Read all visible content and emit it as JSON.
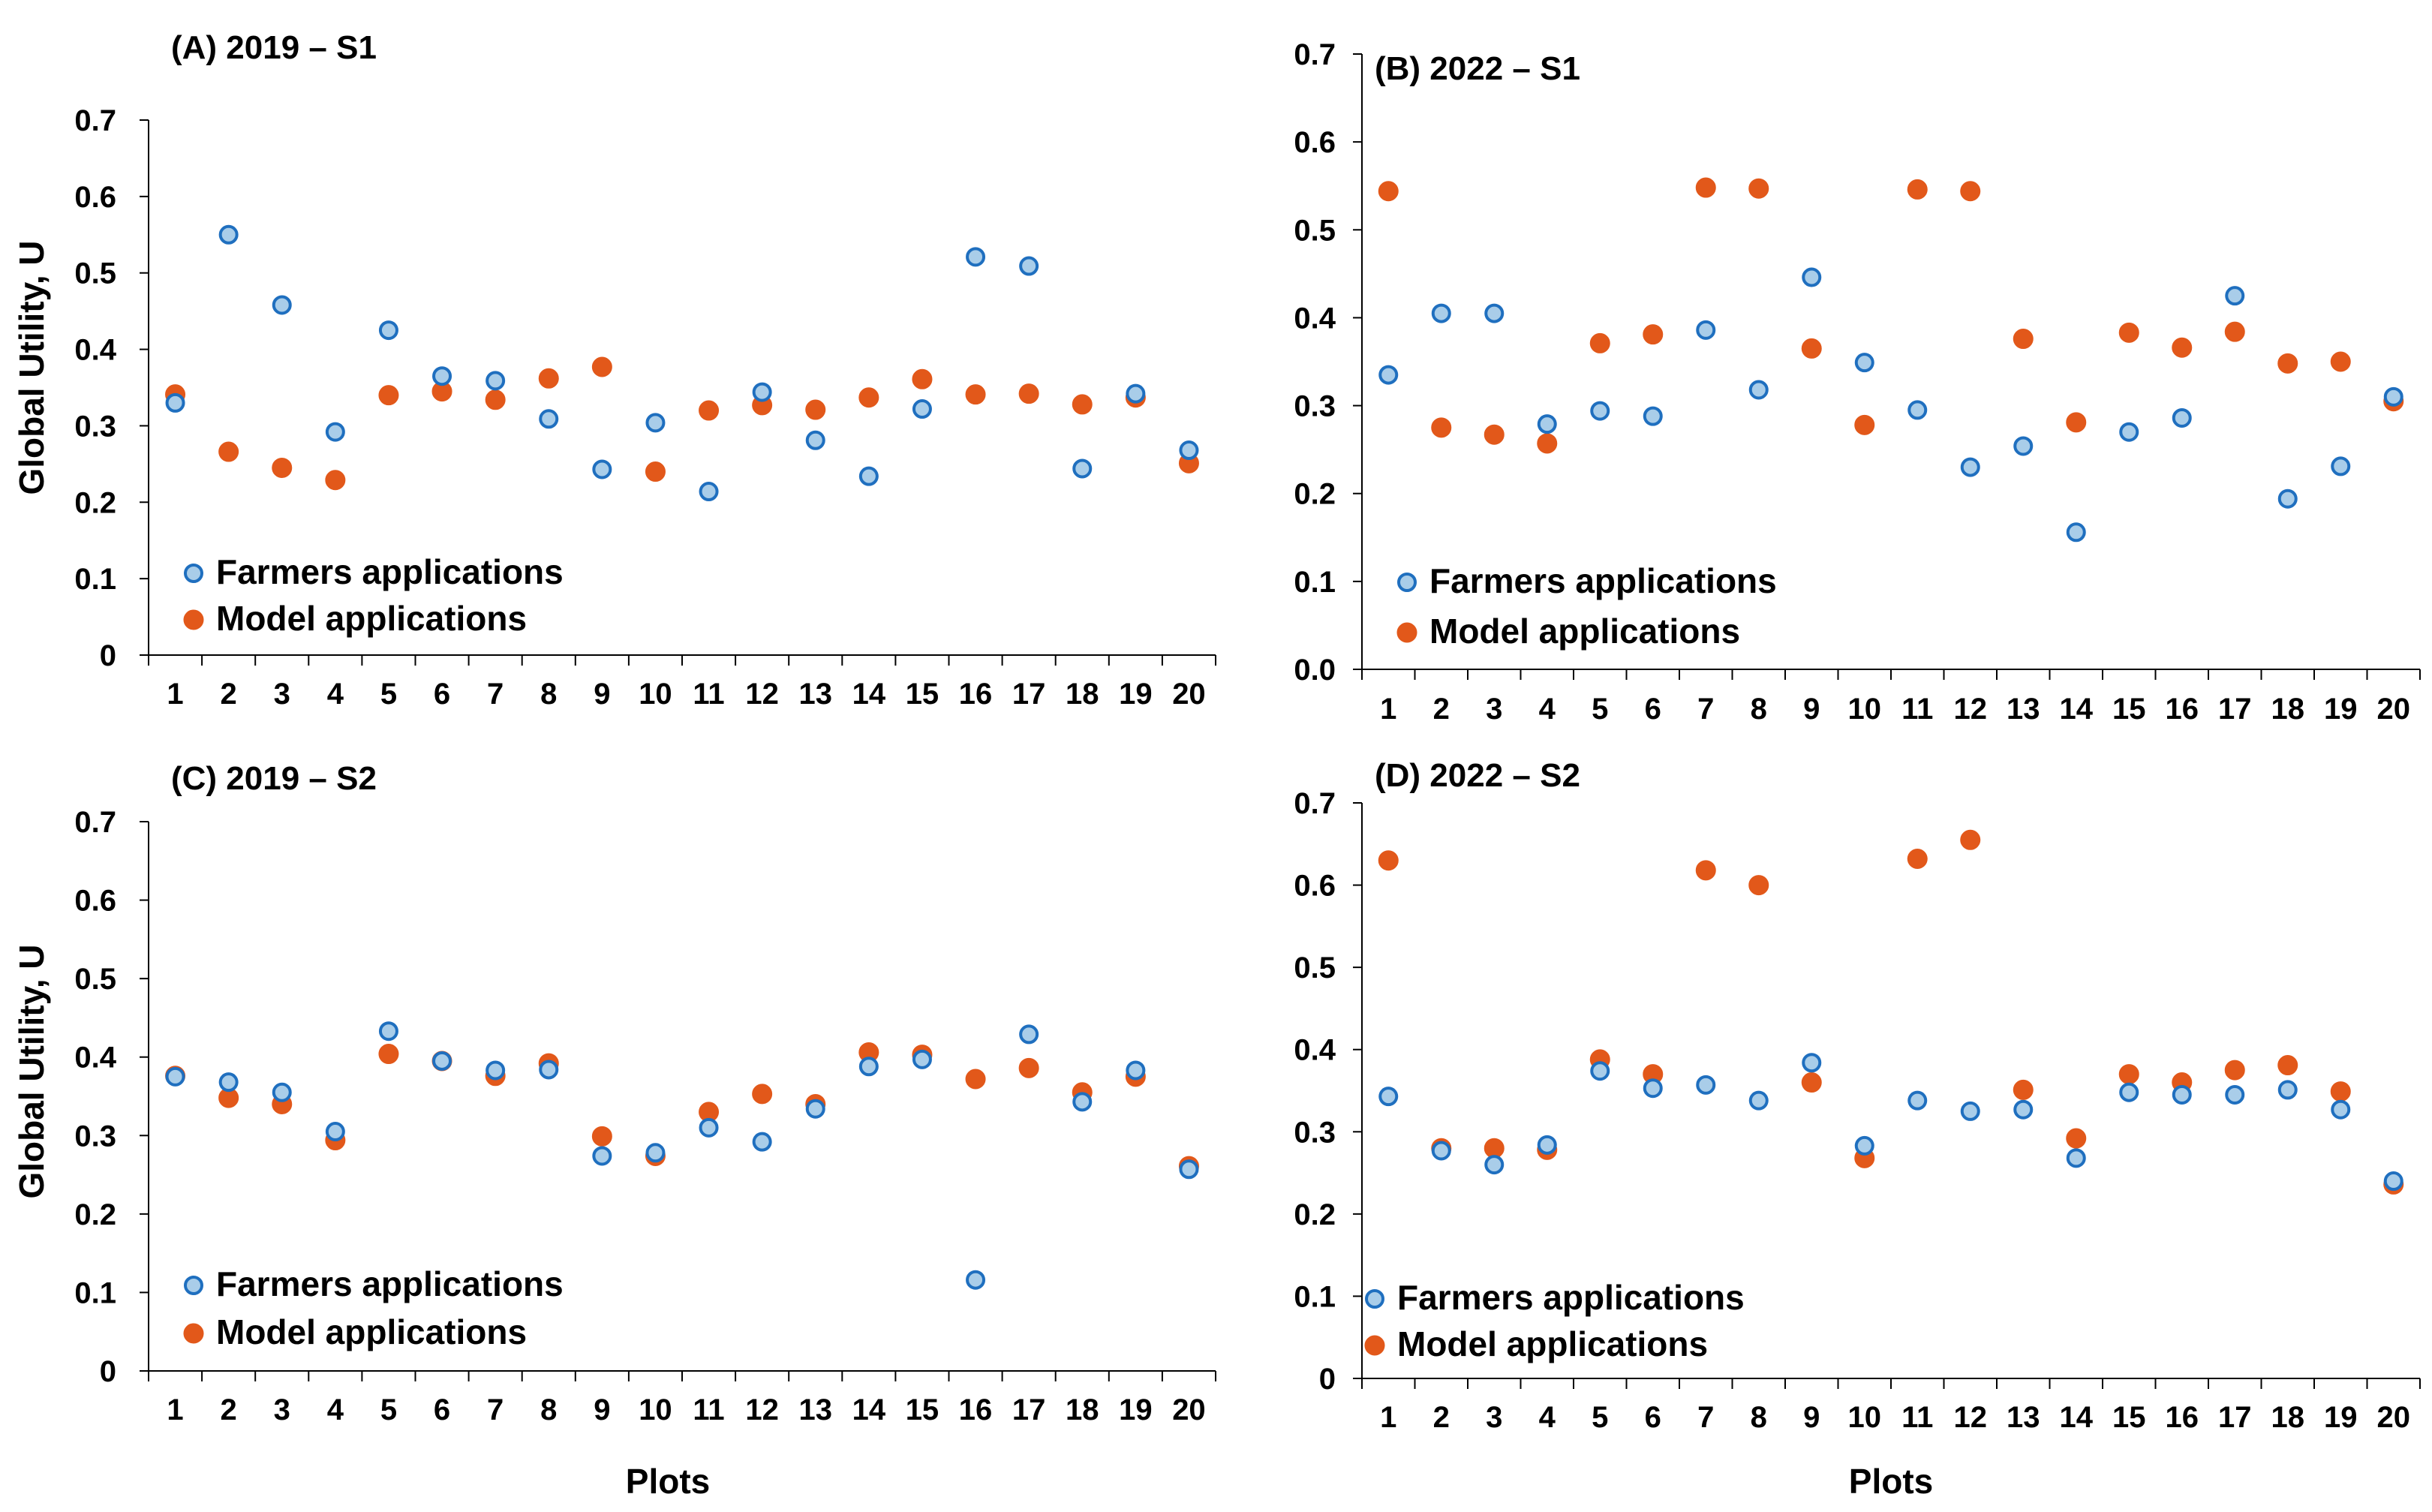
{
  "figure": {
    "ylabel": "Global Utility, U",
    "xlabel": "Plots"
  },
  "colors": {
    "farmers_fill": "#a9cde9",
    "farmers_stroke": "#1f6fbf",
    "model_fill": "#e2581a",
    "axis": "#000000"
  },
  "chart_data": [
    {
      "type": "scatter",
      "title": "(A) 2019 – S1",
      "xlabel": "",
      "ylabel": "Global Utility, U",
      "ylim": [
        0,
        0.7
      ],
      "ytick_labels": [
        "0",
        "0.1",
        "0.2",
        "0.3",
        "0.4",
        "0.5",
        "0.6",
        "0.7"
      ],
      "categories": [
        "1",
        "2",
        "3",
        "4",
        "5",
        "6",
        "7",
        "8",
        "9",
        "10",
        "11",
        "12",
        "13",
        "14",
        "15",
        "16",
        "17",
        "18",
        "19",
        "20"
      ],
      "legend": [
        "Farmers applications",
        "Model applications"
      ],
      "series": [
        {
          "name": "Farmers applications",
          "values": [
            0.33,
            0.55,
            0.458,
            0.292,
            0.425,
            0.365,
            0.359,
            0.309,
            0.243,
            0.304,
            0.214,
            0.344,
            0.281,
            0.234,
            0.322,
            0.521,
            0.509,
            0.244,
            0.342,
            0.268
          ]
        },
        {
          "name": "Model applications",
          "values": [
            0.341,
            0.266,
            0.245,
            0.229,
            0.34,
            0.345,
            0.334,
            0.362,
            0.377,
            0.24,
            0.32,
            0.327,
            0.321,
            0.337,
            0.361,
            0.341,
            0.342,
            0.328,
            0.337,
            0.251
          ]
        }
      ]
    },
    {
      "type": "scatter",
      "title": "(B) 2022 – S1",
      "xlabel": "",
      "ylabel": "",
      "ylim": [
        0,
        0.7
      ],
      "ytick_labels": [
        "0.0",
        "0.1",
        "0.2",
        "0.3",
        "0.4",
        "0.5",
        "0.6",
        "0.7"
      ],
      "categories": [
        "1",
        "2",
        "3",
        "4",
        "5",
        "6",
        "7",
        "8",
        "9",
        "10",
        "11",
        "12",
        "13",
        "14",
        "15",
        "16",
        "17",
        "18",
        "19",
        "20"
      ],
      "legend": [
        "Farmers applications",
        "Model applications"
      ],
      "series": [
        {
          "name": "Farmers applications",
          "values": [
            0.335,
            0.405,
            0.405,
            0.279,
            0.294,
            0.288,
            0.386,
            0.318,
            0.446,
            0.349,
            0.295,
            0.23,
            0.254,
            0.156,
            0.27,
            0.286,
            0.425,
            0.194,
            0.231,
            0.31
          ]
        },
        {
          "name": "Model applications",
          "values": [
            0.544,
            0.275,
            0.267,
            0.257,
            0.371,
            0.381,
            0.548,
            0.547,
            0.365,
            0.278,
            0.546,
            0.544,
            0.376,
            0.281,
            0.383,
            0.366,
            0.384,
            0.348,
            0.35,
            0.305
          ]
        }
      ]
    },
    {
      "type": "scatter",
      "title": "(C) 2019 – S2",
      "xlabel": "Plots",
      "ylabel": "Global Utility, U",
      "ylim": [
        0,
        0.7
      ],
      "ytick_labels": [
        "0",
        "0.1",
        "0.2",
        "0.3",
        "0.4",
        "0.5",
        "0.6",
        "0.7"
      ],
      "categories": [
        "1",
        "2",
        "3",
        "4",
        "5",
        "6",
        "7",
        "8",
        "9",
        "10",
        "11",
        "12",
        "13",
        "14",
        "15",
        "16",
        "17",
        "18",
        "19",
        "20"
      ],
      "legend": [
        "Farmers applications",
        "Model applications"
      ],
      "series": [
        {
          "name": "Farmers applications",
          "values": [
            0.375,
            0.368,
            0.355,
            0.305,
            0.433,
            0.395,
            0.383,
            0.384,
            0.274,
            0.278,
            0.31,
            0.292,
            0.334,
            0.388,
            0.397,
            0.116,
            0.429,
            0.343,
            0.383,
            0.257
          ]
        },
        {
          "name": "Model applications",
          "values": [
            0.376,
            0.348,
            0.34,
            0.294,
            0.404,
            0.395,
            0.376,
            0.392,
            0.299,
            0.274,
            0.33,
            0.353,
            0.34,
            0.406,
            0.403,
            0.372,
            0.386,
            0.355,
            0.375,
            0.261
          ]
        }
      ]
    },
    {
      "type": "scatter",
      "title": "(D) 2022 – S2",
      "xlabel": "Plots",
      "ylabel": "",
      "ylim": [
        0,
        0.7
      ],
      "ytick_labels": [
        "0",
        "0.1",
        "0.2",
        "0.3",
        "0.4",
        "0.5",
        "0.6",
        "0.7"
      ],
      "categories": [
        "1",
        "2",
        "3",
        "4",
        "5",
        "6",
        "7",
        "8",
        "9",
        "10",
        "11",
        "12",
        "13",
        "14",
        "15",
        "16",
        "17",
        "18",
        "19",
        "20"
      ],
      "legend": [
        "Farmers applications",
        "Model applications"
      ],
      "series": [
        {
          "name": "Farmers applications",
          "values": [
            0.343,
            0.277,
            0.26,
            0.284,
            0.374,
            0.353,
            0.357,
            0.338,
            0.384,
            0.283,
            0.338,
            0.325,
            0.327,
            0.268,
            0.348,
            0.345,
            0.345,
            0.351,
            0.327,
            0.24
          ]
        },
        {
          "name": "Model applications",
          "values": [
            0.63,
            0.28,
            0.28,
            0.278,
            0.388,
            0.37,
            0.618,
            0.6,
            0.36,
            0.268,
            0.632,
            0.655,
            0.351,
            0.292,
            0.37,
            0.36,
            0.375,
            0.381,
            0.349,
            0.236
          ]
        }
      ]
    }
  ]
}
